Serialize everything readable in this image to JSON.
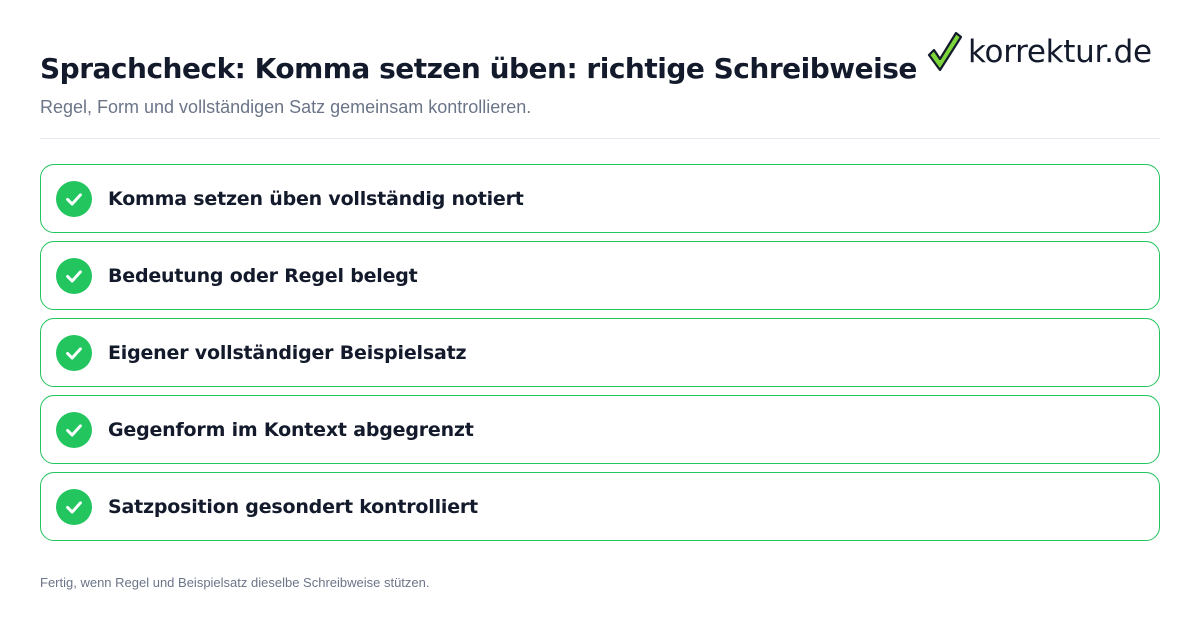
{
  "header": {
    "title": "Sprachcheck: Komma setzen üben: richtige Schreibweise",
    "subtitle": "Regel, Form und vollständigen Satz gemeinsam kontrollieren."
  },
  "logo": {
    "text": "korrektur.de",
    "icon": "checkmark-logo-icon",
    "colors": {
      "check_fill": "#7cd63a",
      "check_outline": "#131a2b"
    }
  },
  "checklist": {
    "items": [
      {
        "label": "Komma setzen üben vollständig notiert",
        "status": "checked",
        "icon": "check-circle-icon"
      },
      {
        "label": "Bedeutung oder Regel belegt",
        "status": "checked",
        "icon": "check-circle-icon"
      },
      {
        "label": "Eigener vollständiger Beispielsatz",
        "status": "checked",
        "icon": "check-circle-icon"
      },
      {
        "label": "Gegenform im Kontext abgegrenzt",
        "status": "checked",
        "icon": "check-circle-icon"
      },
      {
        "label": "Satzposition gesondert kontrolliert",
        "status": "checked",
        "icon": "check-circle-icon"
      }
    ]
  },
  "footer": {
    "text": "Fertig, wenn Regel und Beispielsatz dieselbe Schreibweise stützen."
  },
  "colors": {
    "accent_green": "#22c55e",
    "text_primary": "#131a2b",
    "text_muted": "#6b7588",
    "divider": "#e5e8ee",
    "background": "#ffffff"
  }
}
